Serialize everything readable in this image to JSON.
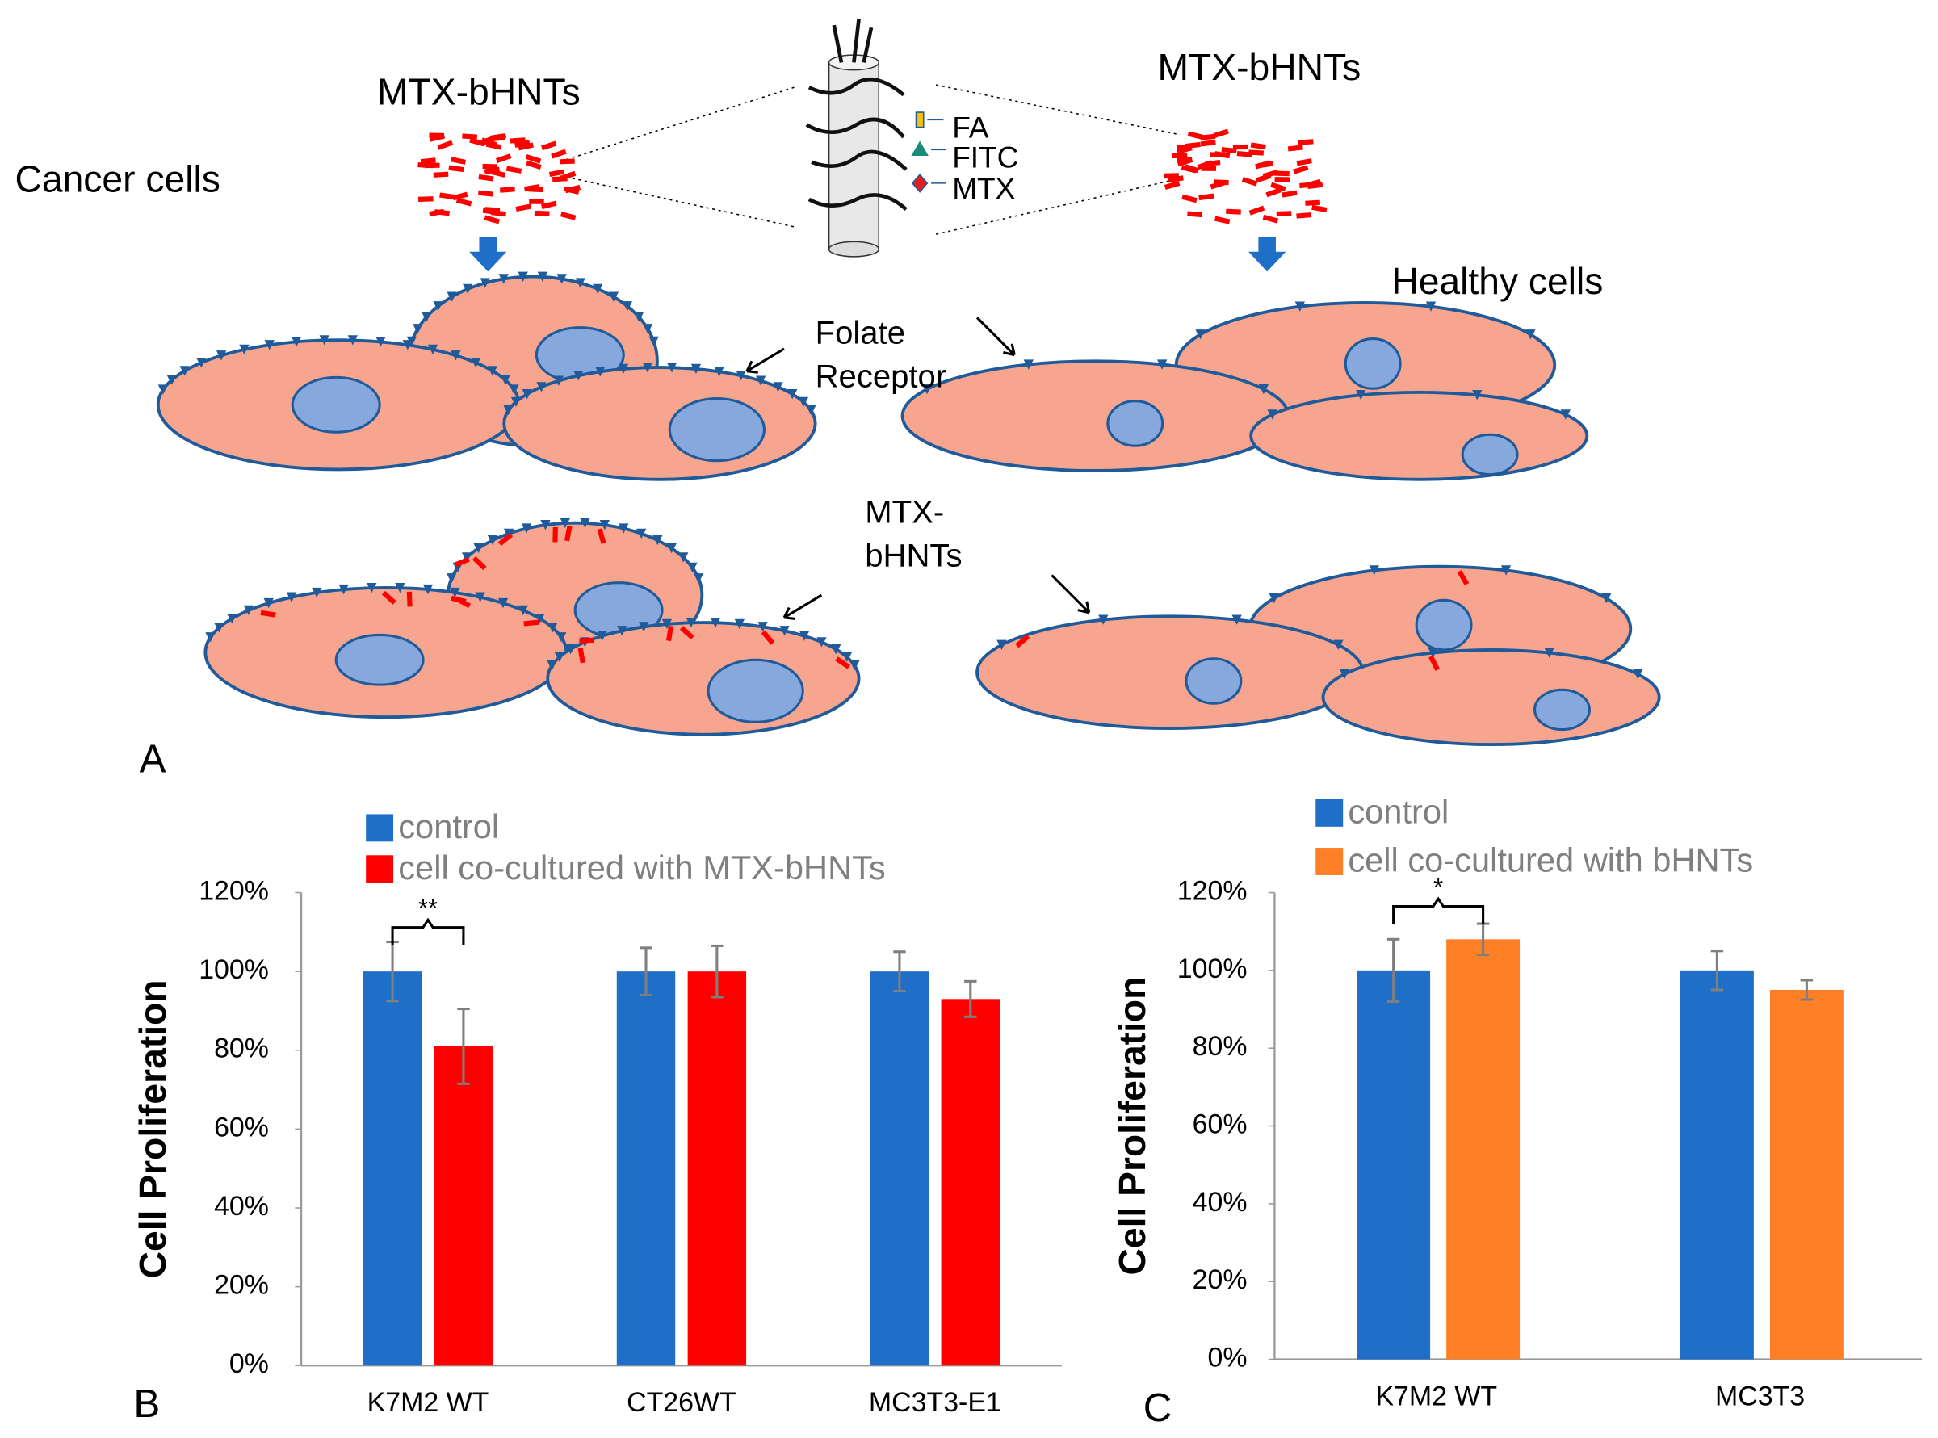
{
  "diagram": {
    "panel_label": "A",
    "cancer_cells": "Cancer cells",
    "healthy_cells": "Healthy cells",
    "mtx_bhnts_left": "MTX-bHNTs",
    "mtx_bhnts_right": "MTX-bHNTs",
    "legend": [
      "FA",
      "FITC",
      "MTX"
    ],
    "folate_receptor": [
      "Folate",
      "Receptor"
    ],
    "mtx_bhnts_lower": [
      "MTX-",
      "bHNTs"
    ]
  },
  "chart_data": [
    {
      "type": "bar",
      "panel_label": "B",
      "y_label": "Cell Proliferation",
      "annotation": "**",
      "categories": [
        "K7M2 WT",
        "CT26WT",
        "MC3T3-E1"
      ],
      "series": [
        {
          "name": "control",
          "color": "#1f6fc8",
          "values": [
            100,
            100,
            100
          ],
          "errors": [
            7.5,
            6,
            5
          ]
        },
        {
          "name": "cell co-cultured with MTX-bHNTs",
          "color": "#ff0000",
          "values": [
            81,
            100,
            93
          ],
          "errors": [
            9.5,
            6.5,
            4.5
          ]
        }
      ],
      "ylim": [
        0,
        120
      ],
      "yticks": [
        {
          "value": 0,
          "label": "0%"
        },
        {
          "value": 20,
          "label": "20%"
        },
        {
          "value": 40,
          "label": "40%"
        },
        {
          "value": 60,
          "label": "60%"
        },
        {
          "value": 80,
          "label": "80%"
        },
        {
          "value": 100,
          "label": "100%"
        },
        {
          "value": 120,
          "label": "120%"
        }
      ]
    },
    {
      "type": "bar",
      "panel_label": "C",
      "y_label": "Cell Proliferation",
      "annotation": "*",
      "categories": [
        "K7M2 WT",
        "MC3T3"
      ],
      "series": [
        {
          "name": "control",
          "color": "#1f6fc8",
          "values": [
            100,
            100
          ],
          "errors": [
            8,
            5
          ]
        },
        {
          "name": "cell co-cultured with bHNTs",
          "color": "#ff7f27",
          "values": [
            108,
            95
          ],
          "errors": [
            4,
            2.5
          ]
        }
      ],
      "ylim": [
        0,
        120
      ],
      "yticks": [
        {
          "value": 0,
          "label": "0%"
        },
        {
          "value": 20,
          "label": "20%"
        },
        {
          "value": 40,
          "label": "40%"
        },
        {
          "value": 60,
          "label": "60%"
        },
        {
          "value": 80,
          "label": "80%"
        },
        {
          "value": 100,
          "label": "100%"
        },
        {
          "value": 120,
          "label": "120%"
        }
      ]
    }
  ]
}
